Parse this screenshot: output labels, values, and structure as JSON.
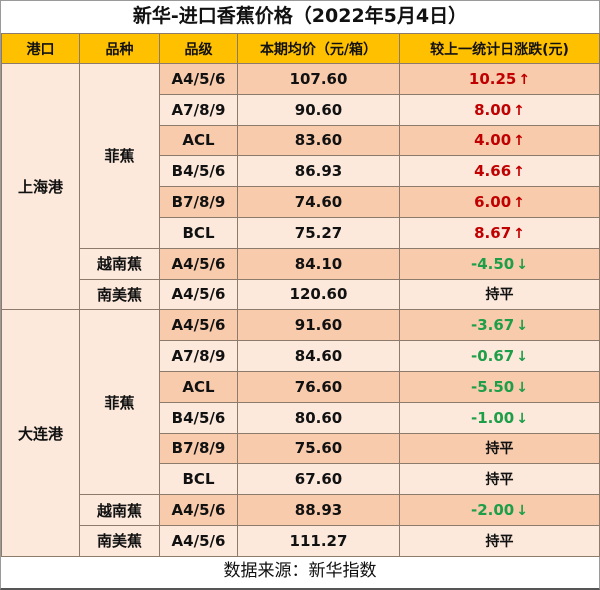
{
  "title": "新华-进口香蕉价格（2022年5月4日）",
  "colors": {
    "header_bg": "#FFC000",
    "row_light": "#FCE9DC",
    "row_dark": "#F8CBAD",
    "up": "#C00000",
    "down": "#1E9E49"
  },
  "headers": [
    "港口",
    "品种",
    "品级",
    "本期均价（元/箱）",
    "较上一统计日涨跌(元)"
  ],
  "icons": {
    "up": "↑",
    "down": "↓"
  },
  "ports": [
    {
      "name": "上海港",
      "rows": [
        {
          "variety": "菲蕉",
          "grade": "A4/5/6",
          "price": "107.60",
          "change": "10.25",
          "direction": "up"
        },
        {
          "variety": "菲蕉",
          "grade": "A7/8/9",
          "price": "90.60",
          "change": "8.00",
          "direction": "up"
        },
        {
          "variety": "菲蕉",
          "grade": "ACL",
          "price": "83.60",
          "change": "4.00",
          "direction": "up"
        },
        {
          "variety": "菲蕉",
          "grade": "B4/5/6",
          "price": "86.93",
          "change": "4.66",
          "direction": "up"
        },
        {
          "variety": "菲蕉",
          "grade": "B7/8/9",
          "price": "74.60",
          "change": "6.00",
          "direction": "up"
        },
        {
          "variety": "菲蕉",
          "grade": "BCL",
          "price": "75.27",
          "change": "8.67",
          "direction": "up"
        },
        {
          "variety": "越南蕉",
          "grade": "A4/5/6",
          "price": "84.10",
          "change": "-4.50",
          "direction": "down"
        },
        {
          "variety": "南美蕉",
          "grade": "A4/5/6",
          "price": "120.60",
          "change": "持平",
          "direction": "flat"
        }
      ]
    },
    {
      "name": "大连港",
      "rows": [
        {
          "variety": "菲蕉",
          "grade": "A4/5/6",
          "price": "91.60",
          "change": "-3.67",
          "direction": "down"
        },
        {
          "variety": "菲蕉",
          "grade": "A7/8/9",
          "price": "84.60",
          "change": "-0.67",
          "direction": "down"
        },
        {
          "variety": "菲蕉",
          "grade": "ACL",
          "price": "76.60",
          "change": "-5.50",
          "direction": "down"
        },
        {
          "variety": "菲蕉",
          "grade": "B4/5/6",
          "price": "80.60",
          "change": "-1.00",
          "direction": "down"
        },
        {
          "variety": "菲蕉",
          "grade": "B7/8/9",
          "price": "75.60",
          "change": "持平",
          "direction": "flat"
        },
        {
          "variety": "菲蕉",
          "grade": "BCL",
          "price": "67.60",
          "change": "持平",
          "direction": "flat"
        },
        {
          "variety": "越南蕉",
          "grade": "A4/5/6",
          "price": "88.93",
          "change": "-2.00",
          "direction": "down"
        },
        {
          "variety": "南美蕉",
          "grade": "A4/5/6",
          "price": "111.27",
          "change": "持平",
          "direction": "flat"
        }
      ]
    }
  ],
  "footer": "数据来源：新华指数"
}
